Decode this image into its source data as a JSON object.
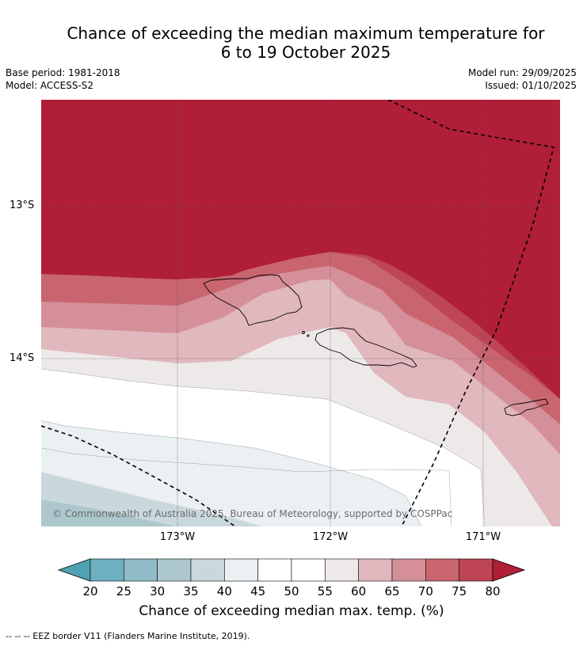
{
  "title": {
    "line1": "Chance of exceeding the median maximum temperature for",
    "line2": "6 to 19 October 2025"
  },
  "meta": {
    "base_period": "Base period: 1981-2018",
    "model": "Model: ACCESS-S2",
    "model_run": "Model run: 29/09/2025",
    "issued": "Issued: 01/10/2025"
  },
  "axes": {
    "lat_labels": [
      "13°S",
      "14°S"
    ],
    "lon_labels": [
      "173°W",
      "172°W",
      "171°W"
    ]
  },
  "copyright": "© Commonwealth of Australia 2025, Bureau of Meteorology, supported by COSPPac",
  "colorbar": {
    "ticks": [
      "20",
      "25",
      "30",
      "35",
      "40",
      "45",
      "50",
      "55",
      "60",
      "65",
      "70",
      "75",
      "80"
    ],
    "label": "Chance of exceeding median max. temp. (%)",
    "colors": [
      "#4fa2b2",
      "#6db0c0",
      "#8fbcc6",
      "#acc8cd",
      "#c9d8dd",
      "#ebf0f2",
      "#ffffff",
      "#ffffff",
      "#ede9e8",
      "#e0b8bd",
      "#d58f98",
      "#c8656f",
      "#bd4555",
      "#b01e38"
    ]
  },
  "footnote": "--  --  -- EEZ border V11 (Flanders Marine Institute, 2019)."
}
